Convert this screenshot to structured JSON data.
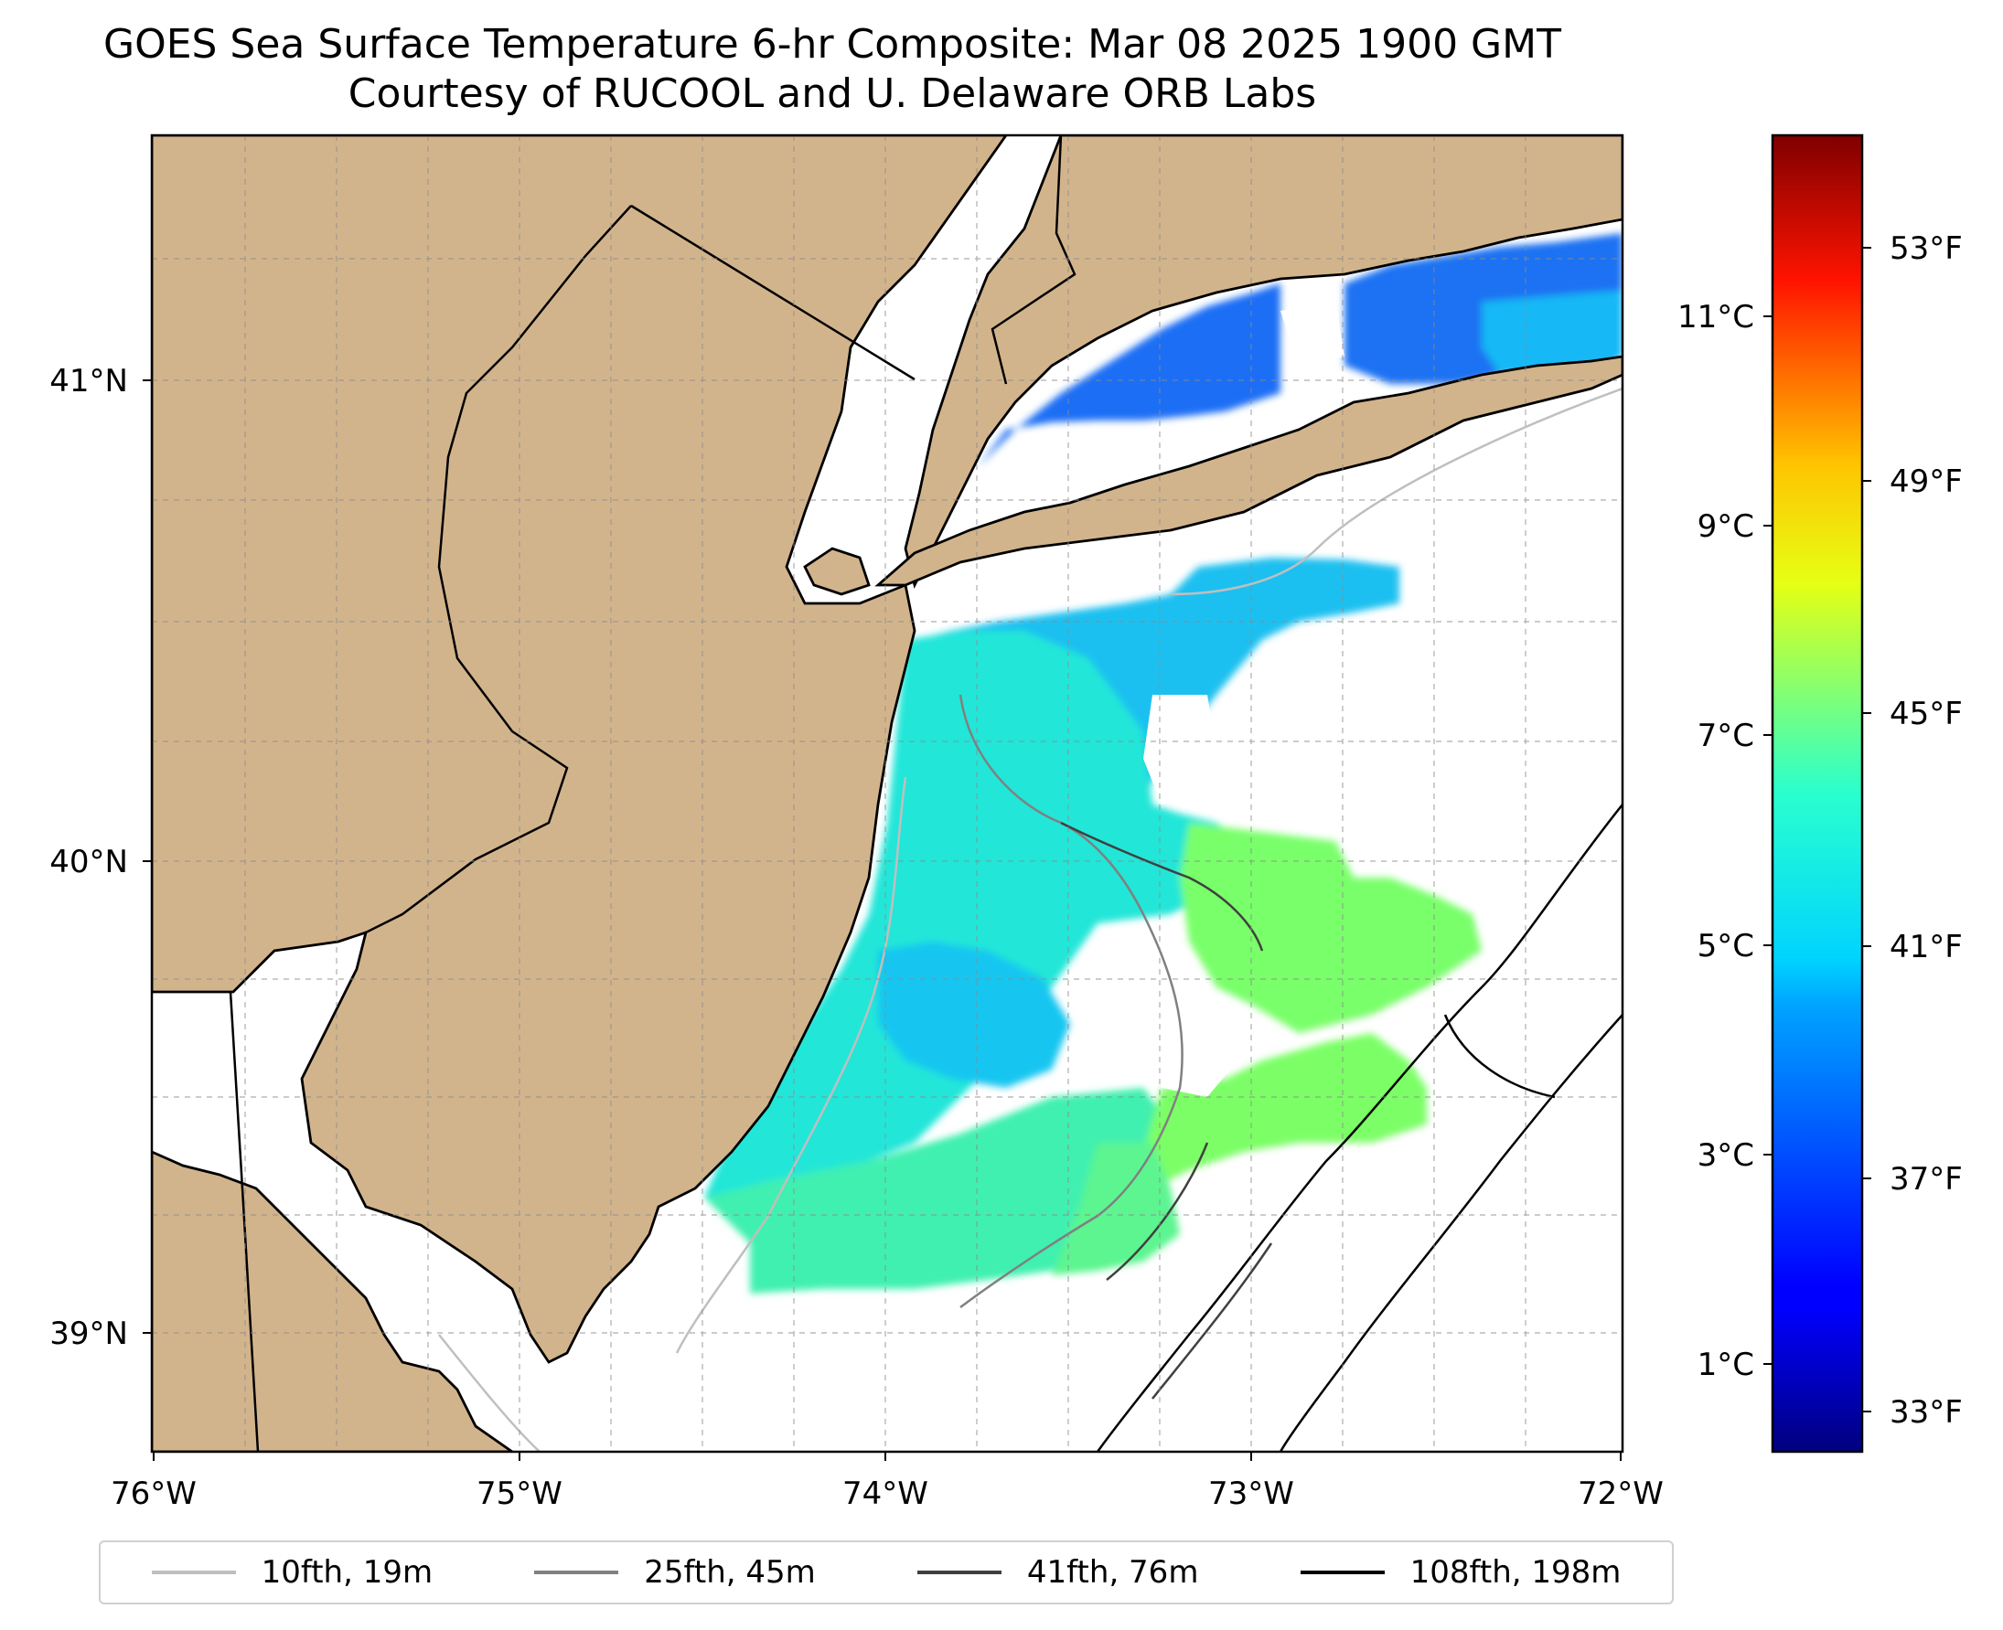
{
  "title": {
    "line1": "GOES Sea Surface Temperature 6-hr Composite: Mar 08 2025 1900 GMT",
    "line2": "Courtesy of RUCOOL and U. Delaware ORB Labs"
  },
  "map": {
    "lon_range": [
      -76,
      -72
    ],
    "lat_range": [
      38.68,
      41.52
    ],
    "lon_ticks": [
      "76°W",
      "75°W",
      "74°W",
      "73°W",
      "72°W"
    ],
    "lat_ticks": [
      "41°N",
      "40°N",
      "39°N"
    ],
    "land_color": "#d2b48c",
    "water_no_data_color": "#ffffff",
    "gridlines": true
  },
  "colorbar": {
    "colormap": "jet",
    "celsius_ticks": [
      "11°C",
      "9°C",
      "7°C",
      "5°C",
      "3°C",
      "1°C"
    ],
    "fahrenheit_ticks": [
      "53°F",
      "49°F",
      "45°F",
      "41°F",
      "37°F",
      "33°F"
    ],
    "range_f": [
      32,
      56
    ]
  },
  "legend": {
    "items": [
      {
        "label": "10fth, 19m",
        "color": "#bfbfbf"
      },
      {
        "label": "25fth, 45m",
        "color": "#808080"
      },
      {
        "label": "41fth, 76m",
        "color": "#404040"
      },
      {
        "label": "108fth, 198m",
        "color": "#000000"
      }
    ]
  }
}
